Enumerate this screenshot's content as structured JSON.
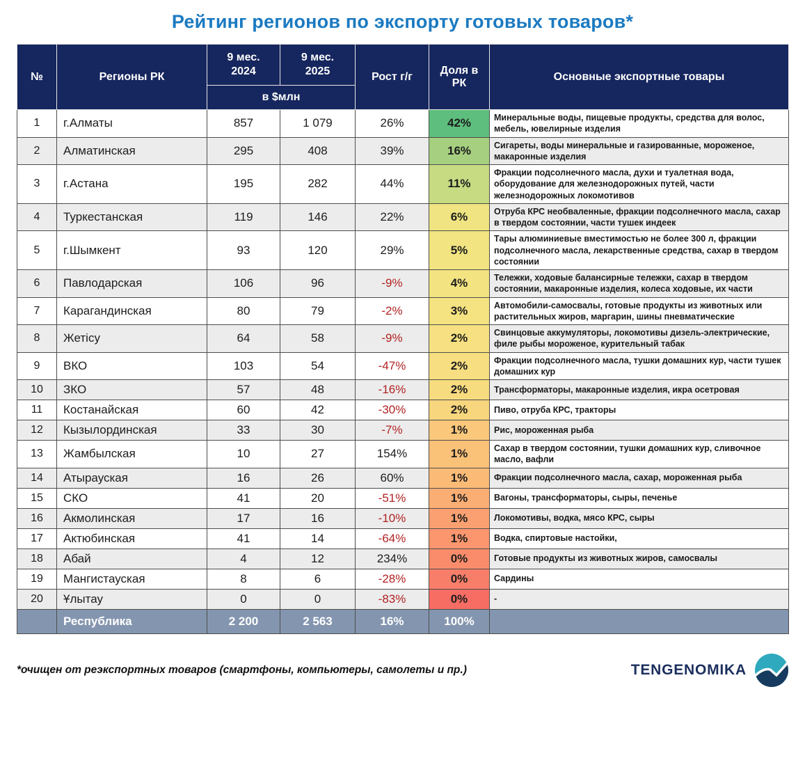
{
  "title": "Рейтинг регионов по экспорту готовых товаров*",
  "footnote": "*очищен от реэкспортных товаров (смартфоны, компьютеры, самолеты и пр.)",
  "logo": {
    "text": "TENGENOMIKA",
    "icon": "wave-circle-icon",
    "teal": "#2fa9be",
    "navy": "#173b5e"
  },
  "colors": {
    "title_blue": "#1b7ac1",
    "header_bg": "#16265e",
    "negative_red": "#b22222",
    "total_row_bg": "#8496af",
    "stripe_gray": "#ececec"
  },
  "header": {
    "num": "№",
    "region": "Регионы РК",
    "p2024": "9 мес.\n2024",
    "p2025": "9 мес.\n2025",
    "unit": "в $млн",
    "growth": "Рост г/г",
    "share": "Доля в РК",
    "goods": "Основные экспортные товары"
  },
  "chart_data": {
    "type": "table",
    "title": "Рейтинг регионов по экспорту готовых товаров*",
    "unit": "в $млн",
    "columns": [
      "№",
      "Регионы РК",
      "9 мес. 2024",
      "9 мес. 2025",
      "Рост г/г",
      "Доля в РК",
      "Основные экспортные товары"
    ],
    "rows": [
      {
        "rank": 1,
        "region": "г.Алматы",
        "v2024": "857",
        "v2025": "1 079",
        "growth": "26%",
        "share": "42%",
        "share_color": "#5ebe7d",
        "goods": "Минеральные воды, пищевые продукты, средства для волос, мебель, ювелирные изделия"
      },
      {
        "rank": 2,
        "region": "Алматинская",
        "v2024": "295",
        "v2025": "408",
        "growth": "39%",
        "share": "16%",
        "share_color": "#a6d07f",
        "goods": "Сигареты, воды минеральные и газированные, мороженое, макаронные изделия"
      },
      {
        "rank": 3,
        "region": "г.Астана",
        "v2024": "195",
        "v2025": "282",
        "growth": "44%",
        "share": "11%",
        "share_color": "#c6db82",
        "goods": "Фракции подсолнечного масла, духи и туалетная вода, оборудование для железнодорожных путей, части железнодорожных локомотивов"
      },
      {
        "rank": 4,
        "region": "Туркестанская",
        "v2024": "119",
        "v2025": "146",
        "growth": "22%",
        "share": "6%",
        "share_color": "#efe481",
        "goods": "Отруба КРС необваленные, фракции подсолнечного масла, сахар в твердом состоянии, части тушек индеек"
      },
      {
        "rank": 5,
        "region": "г.Шымкент",
        "v2024": "93",
        "v2025": "120",
        "growth": "29%",
        "share": "5%",
        "share_color": "#f1e481",
        "goods": "Тары алюминиевые вместимостью не более 300 л, фракции подсолнечного масла, лекарственные средства, сахар в твердом состоянии"
      },
      {
        "rank": 6,
        "region": "Павлодарская",
        "v2024": "106",
        "v2025": "96",
        "growth": "-9%",
        "share": "4%",
        "share_color": "#f3e381",
        "goods": "Тележки, ходовые балансирные тележки, сахар в твердом состоянии, макаронные изделия, колеса ходовые, их части"
      },
      {
        "rank": 7,
        "region": "Карагандинская",
        "v2024": "80",
        "v2025": "79",
        "growth": "-2%",
        "share": "3%",
        "share_color": "#f5e281",
        "goods": "Автомобили-самосвалы, готовые продукты из животных или растительных жиров, маргарин, шины пневматические"
      },
      {
        "rank": 8,
        "region": "Жетісу",
        "v2024": "64",
        "v2025": "58",
        "growth": "-9%",
        "share": "2%",
        "share_color": "#f6e081",
        "goods": "Свинцовые аккумуляторы, локомотивы дизель-электрические, филе рыбы мороженое, курительный табак"
      },
      {
        "rank": 9,
        "region": "ВКО",
        "v2024": "103",
        "v2025": "54",
        "growth": "-47%",
        "share": "2%",
        "share_color": "#f7de80",
        "goods": "Фракции подсолнечного масла, тушки домашних кур, части тушек домашних кур"
      },
      {
        "rank": 10,
        "region": "ЗКО",
        "v2024": "57",
        "v2025": "48",
        "growth": "-16%",
        "share": "2%",
        "share_color": "#f7db7f",
        "goods": "Трансформаторы, макаронные изделия, икра осетровая"
      },
      {
        "rank": 11,
        "region": "Костанайская",
        "v2024": "60",
        "v2025": "42",
        "growth": "-30%",
        "share": "2%",
        "share_color": "#f8d67d",
        "goods": "Пиво, отруба КРС, тракторы"
      },
      {
        "rank": 12,
        "region": "Кызылординская",
        "v2024": "33",
        "v2025": "30",
        "growth": "-7%",
        "share": "1%",
        "share_color": "#fac77b",
        "goods": "Рис, мороженная рыба"
      },
      {
        "rank": 13,
        "region": "Жамбылская",
        "v2024": "10",
        "v2025": "27",
        "growth": "154%",
        "share": "1%",
        "share_color": "#fac179",
        "goods": "Сахар в твердом состоянии, тушки домашних кур, сливочное масло, вафли"
      },
      {
        "rank": 14,
        "region": "Атырауская",
        "v2024": "16",
        "v2025": "26",
        "growth": "60%",
        "share": "1%",
        "share_color": "#fbbb77",
        "goods": "Фракции подсолнечного масла, сахар, мороженная рыба"
      },
      {
        "rank": 15,
        "region": "СКО",
        "v2024": "41",
        "v2025": "20",
        "growth": "-51%",
        "share": "1%",
        "share_color": "#fbae74",
        "goods": "Вагоны, трансформаторы, сыры, печенье"
      },
      {
        "rank": 16,
        "region": "Акмолинская",
        "v2024": "17",
        "v2025": "16",
        "growth": "-10%",
        "share": "1%",
        "share_color": "#fba171",
        "goods": "Локомотивы, водка, мясо КРС, сыры"
      },
      {
        "rank": 17,
        "region": "Актюбинская",
        "v2024": "41",
        "v2025": "14",
        "growth": "-64%",
        "share": "1%",
        "share_color": "#fb966e",
        "goods": "Водка, спиртовые настойки,"
      },
      {
        "rank": 18,
        "region": "Абай",
        "v2024": "4",
        "v2025": "12",
        "growth": "234%",
        "share": "0%",
        "share_color": "#fa8c6c",
        "goods": "Готовые продукты из животных жиров, самосвалы"
      },
      {
        "rank": 19,
        "region": "Мангистауская",
        "v2024": "8",
        "v2025": "6",
        "growth": "-28%",
        "share": "0%",
        "share_color": "#f97e69",
        "goods": "Сардины"
      },
      {
        "rank": 20,
        "region": "Ұлытау",
        "v2024": "0",
        "v2025": "0",
        "growth": "-83%",
        "share": "0%",
        "share_color": "#f76d64",
        "goods": "-"
      }
    ],
    "total": {
      "label": "Республика",
      "v2024": "2 200",
      "v2025": "2 563",
      "growth": "16%",
      "share": "100%",
      "goods": ""
    }
  }
}
